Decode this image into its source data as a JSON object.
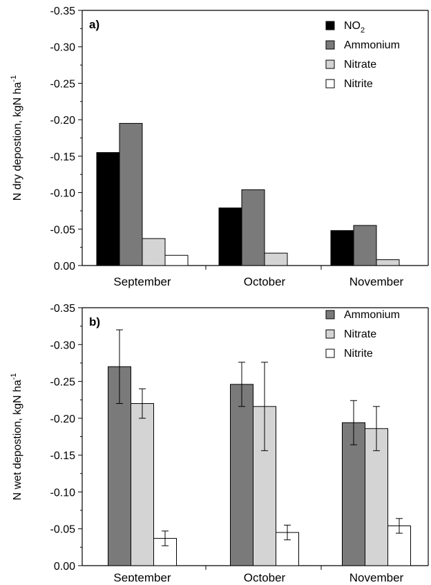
{
  "colors": {
    "NO2": "#000000",
    "Ammonium": "#7a7a7a",
    "Nitrate": "#d4d4d4",
    "Nitrite": "#ffffff"
  },
  "chart_data": [
    {
      "type": "bar",
      "panel_label": "a)",
      "ylabel": "N dry depostion,  kgN ha",
      "ylabel_superscript": "-1",
      "ylim": [
        0,
        -0.35
      ],
      "yticks": [
        "0.00",
        "-0.05",
        "-0.10",
        "-0.15",
        "-0.20",
        "-0.25",
        "-0.30",
        "-0.35"
      ],
      "categories": [
        "September",
        "October",
        "November"
      ],
      "legend_position": "top-right",
      "series": [
        {
          "name": "NO",
          "subscript": "2",
          "key": "NO2",
          "values": [
            -0.155,
            -0.079,
            -0.048
          ]
        },
        {
          "name": "Ammonium",
          "key": "Ammonium",
          "values": [
            -0.195,
            -0.104,
            -0.055
          ]
        },
        {
          "name": "Nitrate",
          "key": "Nitrate",
          "values": [
            -0.037,
            -0.017,
            -0.008
          ]
        },
        {
          "name": "Nitrite",
          "key": "Nitrite",
          "values": [
            -0.014,
            null,
            null
          ]
        }
      ]
    },
    {
      "type": "bar",
      "panel_label": "b)",
      "ylabel": "N wet depostion,  kgN ha",
      "ylabel_superscript": "-1",
      "ylim": [
        0,
        -0.35
      ],
      "yticks": [
        "0.00",
        "-0.05",
        "-0.10",
        "-0.15",
        "-0.20",
        "-0.25",
        "-0.30",
        "-0.35"
      ],
      "categories": [
        "September",
        "October",
        "November"
      ],
      "legend_position": "top-right",
      "series": [
        {
          "name": "Ammonium",
          "key": "Ammonium",
          "values": [
            -0.27,
            -0.246,
            -0.194
          ],
          "error_low": [
            -0.22,
            -0.216,
            -0.164
          ],
          "error_high": [
            -0.32,
            -0.276,
            -0.224
          ]
        },
        {
          "name": "Nitrate",
          "key": "Nitrate",
          "values": [
            -0.22,
            -0.216,
            -0.186
          ],
          "error_low": [
            -0.2,
            -0.156,
            -0.156
          ],
          "error_high": [
            -0.24,
            -0.276,
            -0.216
          ]
        },
        {
          "name": "Nitrite",
          "key": "Nitrite",
          "values": [
            -0.037,
            -0.045,
            -0.054
          ],
          "error_low": [
            -0.027,
            -0.035,
            -0.044
          ],
          "error_high": [
            -0.047,
            -0.055,
            -0.064
          ]
        }
      ]
    }
  ]
}
